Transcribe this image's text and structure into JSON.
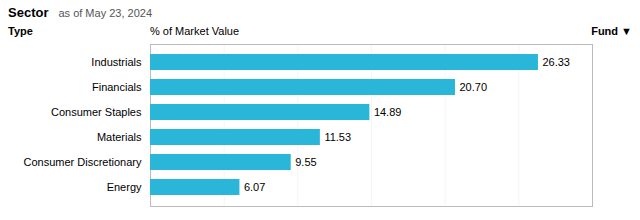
{
  "chart_data": {
    "type": "bar",
    "orientation": "horizontal",
    "title": "Sector",
    "subtitle": "as of May 23, 2024",
    "xlabel": "% of Market Value",
    "annotations": [
      "Type",
      "Fund ▼"
    ],
    "categories": [
      "Industrials",
      "Financials",
      "Consumer Staples",
      "Materials",
      "Consumer Discretionary",
      "Energy"
    ],
    "values": [
      26.33,
      20.7,
      14.89,
      11.53,
      9.55,
      6.07
    ],
    "value_labels": [
      "26.33",
      "20.70",
      "14.89",
      "11.53",
      "9.55",
      "6.07"
    ],
    "data_labels": true,
    "color": "#29b6d8",
    "xlim": [
      0,
      30
    ],
    "xticks": [
      5,
      10,
      15,
      20,
      25,
      30
    ],
    "grid": true,
    "tick_labels": "y"
  }
}
